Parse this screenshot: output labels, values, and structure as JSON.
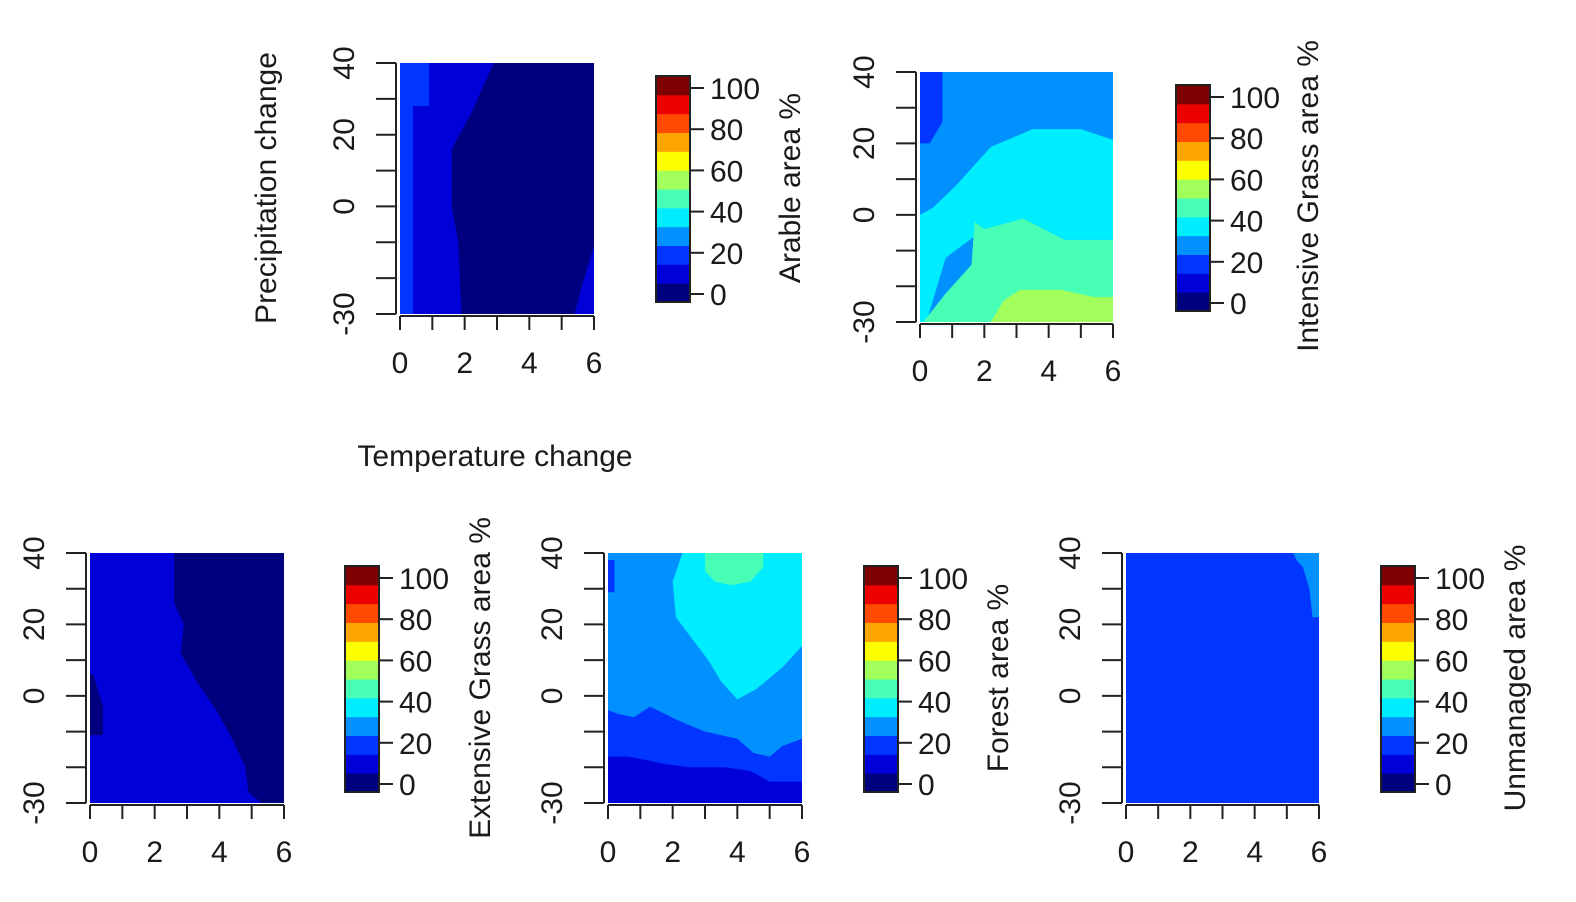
{
  "figure": {
    "xlabel": "Temperature change",
    "ylabel": "Precipitation change"
  },
  "palette": [
    "#00007F",
    "#0000D9",
    "#0036FF",
    "#0091FF",
    "#00ECFF",
    "#48FFB6",
    "#A2FF5B",
    "#FCFF00",
    "#FFA500",
    "#FF4A00",
    "#ED0000",
    "#7F0000"
  ],
  "colorbar_ticks": [
    "0",
    "20",
    "40",
    "60",
    "80",
    "100"
  ],
  "chart_data": [
    {
      "type": "heatmap",
      "title": "",
      "xlabel": "Temperature change",
      "ylabel": "Precipitation change",
      "legend_label": "Arable area %",
      "xticks": [
        "0",
        "2",
        "4",
        "6"
      ],
      "yticks": [
        "-30",
        "0",
        "20",
        "40"
      ],
      "xlim": [
        0,
        6
      ],
      "ylim": [
        -30,
        40
      ],
      "zlim": [
        0,
        100
      ],
      "band_width": 8.33,
      "breakpoints_x": [
        0,
        1,
        2,
        3,
        4,
        5,
        6
      ],
      "breakpoints_y": [
        -30,
        -20,
        -10,
        0,
        10,
        20,
        30,
        40
      ],
      "dominant_band": 0,
      "secondary_band": 1,
      "summary": "Blue (band 1) at low temperature change, dark blue (band 0) from about 2 to 6; small blue patch near 6 at low precipitation."
    },
    {
      "type": "heatmap",
      "title": "",
      "xlabel": "",
      "ylabel": "",
      "legend_label": "Intensive Grass area %",
      "xticks": [
        "0",
        "2",
        "4",
        "6"
      ],
      "yticks": [
        "-30",
        "0",
        "20",
        "40"
      ],
      "xlim": [
        0,
        6
      ],
      "ylim": [
        -30,
        40
      ],
      "zlim": [
        0,
        100
      ],
      "summary": "Light blue (band 3) at high precipitation, cyan (band 4) in the middle, aquamarine (band 5) and yellow-green (band 6) at low precipitation and higher temperature."
    },
    {
      "type": "heatmap",
      "title": "",
      "xlabel": "",
      "ylabel": "",
      "legend_label": "Extensive Grass area %",
      "xticks": [
        "0",
        "2",
        "4",
        "6"
      ],
      "yticks": [
        "-30",
        "0",
        "20",
        "40"
      ],
      "xlim": [
        0,
        6
      ],
      "ylim": [
        -30,
        40
      ],
      "zlim": [
        0,
        100
      ],
      "summary": "Blue (band 1) on the left, dark blue (band 0) to the right of a boundary near 2.7 at high precipitation moving to about 5 at low precipitation."
    },
    {
      "type": "heatmap",
      "title": "",
      "xlabel": "",
      "ylabel": "",
      "legend_label": "Forest area %",
      "xticks": [
        "0",
        "2",
        "4",
        "6"
      ],
      "yticks": [
        "-30",
        "0",
        "20",
        "40"
      ],
      "xlim": [
        0,
        6
      ],
      "ylim": [
        -30,
        40
      ],
      "zlim": [
        0,
        100
      ],
      "summary": "Light blue (band 3) overall, cyan (band 4) region around temperature 3-6 and precipitation 0-40, aquamarine (band 5) near 4 at 40, darker blues at low precipitation."
    },
    {
      "type": "heatmap",
      "title": "",
      "xlabel": "",
      "ylabel": "",
      "legend_label": "Unmanaged area %",
      "xticks": [
        "0",
        "2",
        "4",
        "6"
      ],
      "yticks": [
        "-30",
        "0",
        "20",
        "40"
      ],
      "xlim": [
        0,
        6
      ],
      "ylim": [
        -30,
        40
      ],
      "zlim": [
        0,
        100
      ],
      "summary": "Almost uniformly band 2 (medium blue); light blue strip at temperature near 6 and precipitation above 20."
    }
  ]
}
